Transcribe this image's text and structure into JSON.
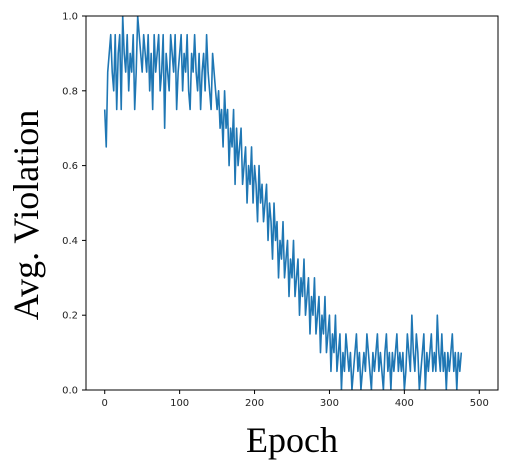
{
  "chart_data": {
    "type": "line",
    "xlabel": "Epoch",
    "ylabel": "Avg. Violation",
    "xlim": [
      -25,
      525
    ],
    "ylim": [
      0.0,
      1.0
    ],
    "xticks": [
      0,
      100,
      200,
      300,
      400,
      500
    ],
    "xtick_labels": [
      "0",
      "100",
      "200",
      "300",
      "400",
      "500"
    ],
    "yticks": [
      0.0,
      0.2,
      0.4,
      0.6,
      0.8,
      1.0
    ],
    "ytick_labels": [
      "0.0",
      "0.2",
      "0.4",
      "0.6",
      "0.8",
      "1.0"
    ],
    "grid": false,
    "series_color": "#1f77b4",
    "series": [
      {
        "x_start": 0,
        "x_step": 2,
        "values": [
          0.75,
          0.65,
          0.85,
          0.9,
          0.95,
          0.85,
          0.8,
          0.95,
          0.75,
          0.9,
          0.95,
          0.75,
          1.0,
          0.9,
          0.85,
          0.95,
          0.8,
          0.9,
          0.85,
          0.95,
          0.75,
          0.85,
          1.0,
          0.95,
          0.9,
          0.85,
          0.95,
          0.9,
          0.85,
          0.95,
          0.8,
          0.9,
          0.75,
          0.95,
          0.85,
          0.9,
          0.95,
          0.8,
          0.85,
          0.95,
          0.7,
          0.9,
          0.85,
          0.8,
          0.95,
          0.9,
          0.85,
          0.95,
          0.75,
          0.85,
          0.9,
          0.95,
          0.8,
          0.9,
          0.85,
          0.95,
          0.8,
          0.75,
          0.9,
          0.85,
          0.95,
          0.85,
          0.8,
          0.9,
          0.75,
          0.85,
          0.9,
          0.8,
          0.95,
          0.85,
          0.8,
          0.75,
          0.9,
          0.85,
          0.8,
          0.75,
          0.8,
          0.7,
          0.75,
          0.65,
          0.8,
          0.7,
          0.75,
          0.6,
          0.7,
          0.65,
          0.75,
          0.55,
          0.7,
          0.6,
          0.65,
          0.7,
          0.55,
          0.6,
          0.65,
          0.5,
          0.6,
          0.55,
          0.65,
          0.5,
          0.6,
          0.55,
          0.45,
          0.6,
          0.5,
          0.55,
          0.45,
          0.5,
          0.55,
          0.4,
          0.5,
          0.45,
          0.35,
          0.5,
          0.4,
          0.45,
          0.3,
          0.4,
          0.35,
          0.45,
          0.3,
          0.35,
          0.4,
          0.25,
          0.35,
          0.3,
          0.4,
          0.25,
          0.3,
          0.35,
          0.2,
          0.3,
          0.25,
          0.35,
          0.2,
          0.25,
          0.3,
          0.15,
          0.25,
          0.2,
          0.3,
          0.15,
          0.2,
          0.25,
          0.1,
          0.2,
          0.15,
          0.25,
          0.1,
          0.15,
          0.2,
          0.05,
          0.15,
          0.1,
          0.2,
          0.05,
          0.1,
          0.15,
          0.0,
          0.1,
          0.05,
          0.15,
          0.1,
          0.05,
          0.1,
          0.0,
          0.05,
          0.1,
          0.15,
          0.05,
          0.1,
          0.0,
          0.05,
          0.1,
          0.05,
          0.15,
          0.1,
          0.05,
          0.0,
          0.1,
          0.05,
          0.1,
          0.15,
          0.05,
          0.1,
          0.05,
          0.0,
          0.1,
          0.15,
          0.05,
          0.1,
          0.0,
          0.1,
          0.05,
          0.1,
          0.15,
          0.05,
          0.1,
          0.05,
          0.1,
          0.0,
          0.05,
          0.15,
          0.1,
          0.05,
          0.2,
          0.1,
          0.05,
          0.15,
          0.1,
          0.0,
          0.05,
          0.1,
          0.15,
          0.0,
          0.1,
          0.05,
          0.1,
          0.15,
          0.05,
          0.1,
          0.05,
          0.2,
          0.1,
          0.05,
          0.15,
          0.05,
          0.1,
          0.0,
          0.1,
          0.05,
          0.1,
          0.15,
          0.05,
          0.1,
          0.0,
          0.1,
          0.05,
          0.1
        ]
      }
    ]
  }
}
